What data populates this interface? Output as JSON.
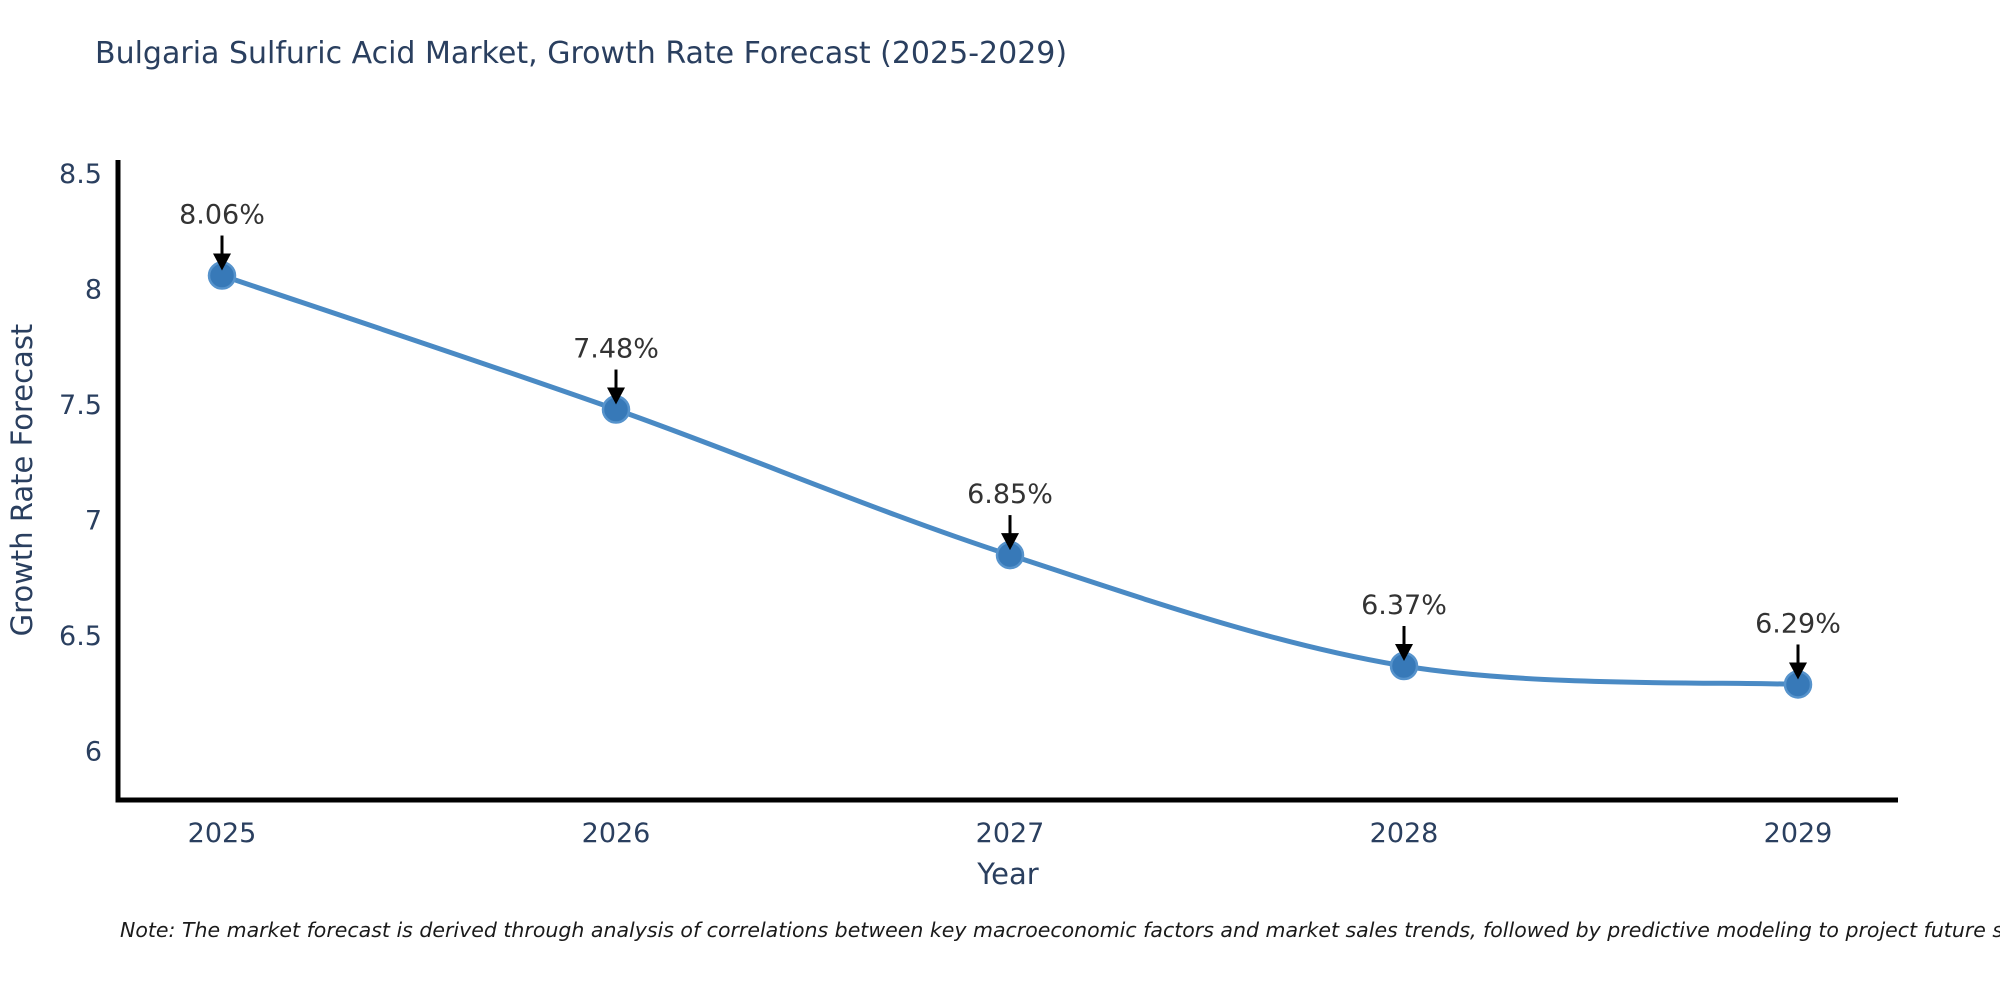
{
  "chart": {
    "title": "Bulgaria Sulfuric Acid Market, Growth Rate Forecast (2025-2029)"
  },
  "chart_data": {
    "type": "line",
    "x": [
      "2025",
      "2026",
      "2027",
      "2028",
      "2029"
    ],
    "values": [
      8.06,
      7.48,
      6.85,
      6.37,
      6.29
    ],
    "point_labels": [
      "8.06%",
      "7.48%",
      "6.85%",
      "6.37%",
      "6.29%"
    ],
    "title": "Bulgaria Sulfuric Acid Market, Growth Rate Forecast (2025-2029)",
    "xlabel": "Year",
    "ylabel": "Growth Rate Forecast",
    "yticks": [
      6,
      6.5,
      7,
      7.5,
      8,
      8.5
    ],
    "ylim": [
      5.79,
      8.56
    ],
    "grid": false,
    "legend_position": "none",
    "line_shape": "spline",
    "annotation_style": "value labels with black down-arrows above each marker",
    "colors": {
      "line": "#4a8ac4",
      "marker_fill": "#3779b8",
      "marker_edge": "#5693cc",
      "arrow": "#000000",
      "axis": "#000000",
      "axis_text": "#2a3f5f",
      "label_text": "#333333"
    }
  },
  "note": "Note: The market forecast is derived through analysis of correlations between key macroeconomic factors and market sales trends, followed by predictive modeling to project future sales"
}
